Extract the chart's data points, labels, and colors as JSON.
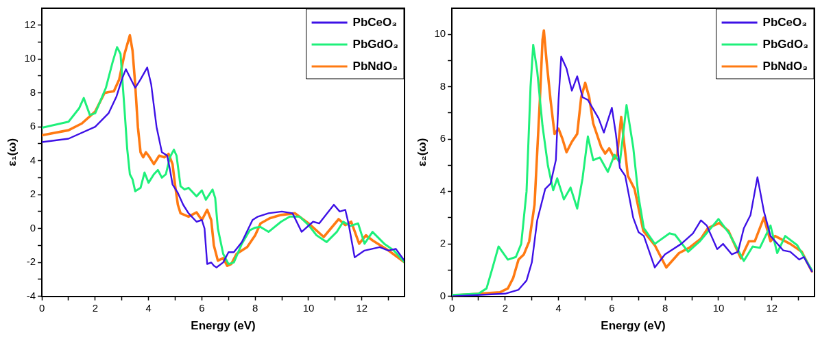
{
  "chart_data": [
    {
      "type": "line",
      "xlabel": "Energy (eV)",
      "ylabel": "ε₁(ω)",
      "xlim": [
        0,
        13.6
      ],
      "ylim": [
        -4,
        13
      ],
      "xticks": [
        0,
        {
          "value": 1,
          "label": null
        },
        2,
        {
          "value": 3,
          "label": null
        },
        4,
        {
          "value": 5,
          "label": null
        },
        6,
        {
          "value": 7,
          "label": null
        },
        8,
        {
          "value": 9,
          "label": null
        },
        10,
        {
          "value": 11,
          "label": null
        },
        12,
        {
          "value": 13,
          "label": null
        }
      ],
      "yticks": [
        -4,
        {
          "value": -3,
          "label": null
        },
        -2,
        {
          "value": -1,
          "label": null
        },
        0,
        {
          "value": 1,
          "label": null
        },
        2,
        {
          "value": 3,
          "label": null
        },
        4,
        {
          "value": 5,
          "label": null
        },
        6,
        {
          "value": 7,
          "label": null
        },
        8,
        {
          "value": 9,
          "label": null
        },
        10,
        {
          "value": 11,
          "label": null
        },
        12
      ],
      "grid": false,
      "legend": "top right",
      "marker": "none",
      "line_style": "solid",
      "series": [
        {
          "name": "PbCeO₃",
          "color": "#3d10e6",
          "x": [
            0,
            1,
            2,
            2.5,
            2.8,
            3.0,
            3.15,
            3.5,
            3.7,
            3.95,
            4.1,
            4.3,
            4.5,
            4.7,
            4.8,
            4.9,
            5.1,
            5.3,
            5.5,
            5.8,
            6.0,
            6.1,
            6.2,
            6.35,
            6.45,
            6.55,
            6.8,
            7.0,
            7.2,
            7.5,
            7.9,
            8.1,
            8.5,
            9.0,
            9.4,
            9.74,
            10.17,
            10.4,
            10.95,
            11.17,
            11.38,
            11.5,
            11.73,
            12.1,
            12.67,
            13.0,
            13.27,
            13.6
          ],
          "values": [
            5.1,
            5.3,
            6.0,
            6.8,
            7.8,
            8.8,
            9.4,
            8.3,
            8.8,
            9.5,
            8.5,
            6,
            4.5,
            4.3,
            3.5,
            2.6,
            2.1,
            1.4,
            0.9,
            0.4,
            0.5,
            0.0,
            -2.1,
            -2.0,
            -2.2,
            -2.3,
            -2.0,
            -1.4,
            -1.4,
            -0.8,
            0.5,
            0.7,
            0.9,
            1.0,
            0.9,
            -0.2,
            0.4,
            0.3,
            1.4,
            1.0,
            1.1,
            0.3,
            -1.7,
            -1.3,
            -1.1,
            -1.3,
            -1.2,
            -1.9
          ]
        },
        {
          "name": "PbGdO₃",
          "color": "#1ef07a",
          "x": [
            0,
            1.0,
            1.4,
            1.57,
            1.8,
            2.0,
            2.4,
            2.65,
            2.82,
            2.95,
            3.1,
            3.2,
            3.3,
            3.4,
            3.5,
            3.7,
            3.85,
            4.0,
            4.2,
            4.35,
            4.5,
            4.65,
            4.8,
            4.95,
            5.05,
            5.2,
            5.35,
            5.5,
            5.8,
            6.0,
            6.15,
            6.4,
            6.5,
            6.6,
            6.8,
            7.0,
            7.2,
            7.5,
            7.8,
            8.0,
            8.19,
            8.5,
            8.97,
            9.3,
            9.67,
            10.0,
            10.3,
            10.68,
            11.06,
            11.3,
            11.57,
            11.86,
            12.1,
            12.4,
            12.84,
            13.2,
            13.6
          ],
          "values": [
            5.95,
            6.3,
            7.1,
            7.7,
            6.7,
            6.8,
            8.3,
            9.8,
            10.7,
            10.3,
            7,
            4.7,
            3.2,
            2.9,
            2.2,
            2.4,
            3.3,
            2.7,
            3.2,
            3.45,
            3.0,
            3.2,
            4.2,
            4.65,
            4.3,
            2.5,
            2.3,
            2.4,
            1.9,
            2.25,
            1.7,
            2.3,
            1.8,
            0,
            -1.5,
            -2.1,
            -2.0,
            -0.9,
            -0.1,
            0.05,
            0.1,
            -0.2,
            0.4,
            0.7,
            0.7,
            0.2,
            -0.4,
            -0.8,
            -0.2,
            0.4,
            0.15,
            0.3,
            -0.9,
            -0.2,
            -0.9,
            -1.3,
            -2.0
          ]
        },
        {
          "name": "PbNdO₃",
          "color": "#ff7a12",
          "x": [
            0,
            1.0,
            1.5,
            2.0,
            2.35,
            2.5,
            2.7,
            2.9,
            3.1,
            3.3,
            3.4,
            3.5,
            3.6,
            3.7,
            3.8,
            3.9,
            4.0,
            4.2,
            4.4,
            4.6,
            4.75,
            4.9,
            5.0,
            5.1,
            5.2,
            5.5,
            5.8,
            6.0,
            6.2,
            6.35,
            6.45,
            6.6,
            6.8,
            6.95,
            7.1,
            7.3,
            7.5,
            7.7,
            8.0,
            8.2,
            8.54,
            8.97,
            9.49,
            10.0,
            10.57,
            11.13,
            11.38,
            11.6,
            11.9,
            12.15,
            12.4,
            13.0,
            13.6
          ],
          "values": [
            5.5,
            5.8,
            6.2,
            6.9,
            8.0,
            8.05,
            8.1,
            8.8,
            10.3,
            11.4,
            10.5,
            8.5,
            6,
            4.5,
            4.2,
            4.5,
            4.3,
            3.8,
            4.3,
            4.2,
            4.4,
            3.8,
            2.5,
            1.4,
            0.9,
            0.7,
            0.95,
            0.5,
            1.1,
            0.5,
            -1.0,
            -1.9,
            -1.75,
            -2.2,
            -2.1,
            -1.5,
            -1.3,
            -1.1,
            -0.4,
            0.3,
            0.6,
            0.8,
            0.9,
            0.3,
            -0.5,
            0.55,
            0.2,
            0.4,
            -0.9,
            -0.4,
            -0.7,
            -1.3,
            -2.0
          ]
        }
      ]
    },
    {
      "type": "line",
      "xlabel": "Energy (eV)",
      "ylabel": "ε₂(ω)",
      "xlim": [
        0,
        13.6
      ],
      "ylim": [
        0,
        11
      ],
      "xticks": [
        0,
        {
          "value": 1,
          "label": null
        },
        2,
        {
          "value": 3,
          "label": null
        },
        4,
        {
          "value": 5,
          "label": null
        },
        6,
        {
          "value": 7,
          "label": null
        },
        8,
        {
          "value": 9,
          "label": null
        },
        10,
        {
          "value": 11,
          "label": null
        },
        12,
        {
          "value": 13,
          "label": null
        }
      ],
      "yticks": [
        0,
        {
          "value": 1,
          "label": null
        },
        2,
        {
          "value": 3,
          "label": null
        },
        4,
        {
          "value": 5,
          "label": null
        },
        6,
        {
          "value": 7,
          "label": null
        },
        8,
        {
          "value": 9,
          "label": null
        },
        10
      ],
      "grid": false,
      "legend": "top right",
      "marker": "none",
      "line_style": "solid",
      "series": [
        {
          "name": "PbCeO₃",
          "color": "#3d10e6",
          "x": [
            0,
            2.0,
            2.5,
            2.8,
            3.0,
            3.2,
            3.5,
            3.7,
            3.9,
            4.0,
            4.1,
            4.3,
            4.5,
            4.7,
            4.9,
            5.1,
            5.5,
            5.7,
            6.0,
            6.15,
            6.3,
            6.5,
            6.8,
            7.0,
            7.2,
            7.61,
            7.99,
            8.6,
            9.04,
            9.34,
            9.56,
            9.95,
            10.17,
            10.5,
            10.73,
            10.95,
            11.2,
            11.46,
            11.7,
            11.95,
            12.43,
            12.69,
            13.03,
            13.2,
            13.5
          ],
          "values": [
            0.0,
            0.1,
            0.25,
            0.6,
            1.3,
            2.9,
            4.1,
            4.3,
            5.2,
            7.5,
            9.15,
            8.7,
            7.85,
            8.4,
            7.6,
            7.5,
            6.8,
            6.25,
            7.2,
            6.2,
            4.9,
            4.6,
            3.0,
            2.45,
            2.3,
            1.1,
            1.6,
            2.0,
            2.4,
            2.9,
            2.7,
            1.8,
            2.0,
            1.6,
            1.7,
            2.6,
            3.1,
            4.55,
            3.25,
            2.3,
            1.75,
            1.7,
            1.4,
            1.5,
            0.95
          ]
        },
        {
          "name": "PbGdO₃",
          "color": "#1ef07a",
          "x": [
            0,
            1.0,
            1.3,
            1.5,
            1.75,
            2.1,
            2.4,
            2.6,
            2.8,
            2.95,
            3.05,
            3.2,
            3.4,
            3.6,
            3.8,
            3.95,
            4.2,
            4.45,
            4.7,
            4.9,
            5.1,
            5.3,
            5.55,
            5.85,
            6.1,
            6.3,
            6.55,
            6.8,
            7.0,
            7.2,
            7.61,
            8.16,
            8.37,
            8.86,
            9.3,
            10.0,
            10.4,
            10.95,
            11.28,
            11.55,
            11.95,
            12.2,
            12.5,
            12.95,
            13.5
          ],
          "values": [
            0.05,
            0.1,
            0.3,
            1.0,
            1.9,
            1.4,
            1.5,
            2.0,
            4,
            8,
            9.6,
            8.6,
            6.5,
            5,
            4.05,
            4.5,
            3.7,
            4.15,
            3.35,
            4.5,
            6.1,
            5.2,
            5.3,
            4.75,
            5.4,
            5.1,
            7.3,
            5.7,
            3.8,
            2.6,
            2.0,
            2.4,
            2.35,
            1.7,
            2.1,
            2.95,
            2.4,
            1.35,
            1.9,
            1.85,
            2.7,
            1.65,
            2.3,
            1.95,
            1.0
          ]
        },
        {
          "name": "PbNdO₃",
          "color": "#ff7a12",
          "x": [
            0,
            1.8,
            2.1,
            2.3,
            2.5,
            2.7,
            2.9,
            3.1,
            3.3,
            3.4,
            3.45,
            3.55,
            3.7,
            3.85,
            4.0,
            4.15,
            4.3,
            4.5,
            4.7,
            4.85,
            5.0,
            5.15,
            5.3,
            5.6,
            5.75,
            5.9,
            6.1,
            6.2,
            6.35,
            6.5,
            6.6,
            6.85,
            7.18,
            7.61,
            8.04,
            8.52,
            8.9,
            9.34,
            9.6,
            10.03,
            10.37,
            10.84,
            11.14,
            11.36,
            11.7,
            11.95,
            12.12,
            12.69,
            13.12,
            13.5
          ],
          "values": [
            0.03,
            0.15,
            0.3,
            0.7,
            1.4,
            1.6,
            2.1,
            3.5,
            7.5,
            9.8,
            10.15,
            9,
            7.5,
            6.2,
            6.4,
            6.0,
            5.5,
            5.9,
            6.2,
            7.6,
            8.15,
            7.6,
            6.6,
            5.7,
            5.45,
            5.65,
            5.25,
            5.4,
            6.85,
            5.5,
            4.6,
            4.1,
            2.5,
            1.95,
            1.1,
            1.65,
            1.85,
            2.2,
            2.6,
            2.8,
            2.5,
            1.45,
            2.1,
            2.1,
            3.0,
            2.1,
            2.3,
            2.0,
            1.7,
            0.95
          ]
        }
      ]
    }
  ]
}
